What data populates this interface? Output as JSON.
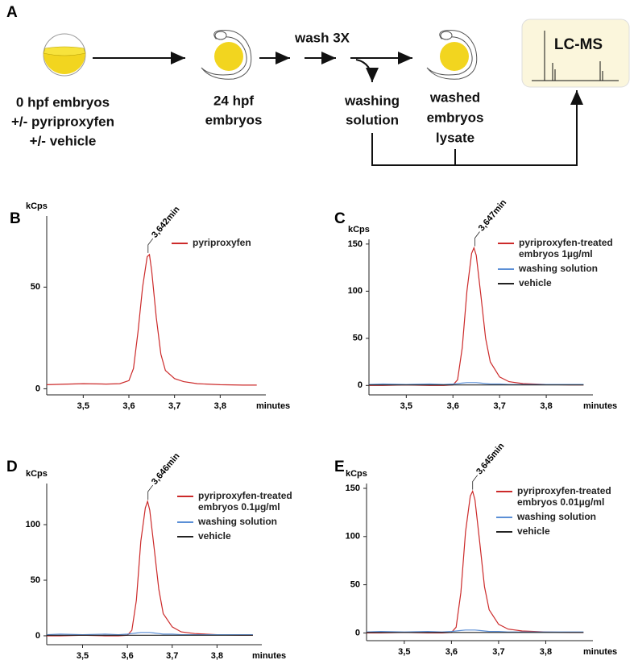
{
  "diagram": {
    "panel": "A",
    "start": [
      "0 hpf embryos",
      "+/- pyriproxyfen",
      "+/- vehicle"
    ],
    "mid": [
      "24 hpf",
      "embryos"
    ],
    "wash": "wash 3X",
    "solution": [
      "washing",
      "solution"
    ],
    "lysate": [
      "washed",
      "embryos",
      "lysate"
    ],
    "instrument": "LC-MS"
  },
  "chart_data": [
    {
      "type": "line",
      "panel": "B",
      "ylabel": "kCps",
      "xlabel": "minutes",
      "peak_label": "3,642min",
      "peak_x": 3.642,
      "x": [
        3.42,
        3.45,
        3.5,
        3.55,
        3.58,
        3.6,
        3.61,
        3.62,
        3.63,
        3.64,
        3.645,
        3.65,
        3.66,
        3.67,
        3.68,
        3.7,
        3.72,
        3.75,
        3.8,
        3.85,
        3.88
      ],
      "xlim": [
        3.42,
        3.9
      ],
      "xticks": [
        {
          "value": 3.5,
          "label": "3,5"
        },
        {
          "value": 3.6,
          "label": "3,6"
        },
        {
          "value": 3.7,
          "label": "3,7"
        },
        {
          "value": 3.8,
          "label": "3,8"
        }
      ],
      "ylim": [
        -3,
        85
      ],
      "yticks": [
        0,
        50
      ],
      "series": [
        {
          "name": "pyriproxyfen",
          "color": "#cc2a2a",
          "values": [
            2,
            2.2,
            2.5,
            2.3,
            2.5,
            4,
            10,
            28,
            50,
            65,
            66,
            58,
            35,
            17,
            9,
            5,
            3.5,
            2.5,
            2,
            1.8,
            1.8
          ]
        }
      ]
    },
    {
      "type": "line",
      "panel": "C",
      "ylabel": "kCps",
      "xlabel": "minutes",
      "peak_label": "3,647min",
      "peak_x": 3.647,
      "x": [
        3.42,
        3.45,
        3.5,
        3.55,
        3.58,
        3.6,
        3.61,
        3.62,
        3.63,
        3.64,
        3.645,
        3.65,
        3.66,
        3.67,
        3.68,
        3.7,
        3.72,
        3.75,
        3.8,
        3.85,
        3.88
      ],
      "xlim": [
        3.42,
        3.9
      ],
      "xticks": [
        {
          "value": 3.5,
          "label": "3,5"
        },
        {
          "value": 3.6,
          "label": "3,6"
        },
        {
          "value": 3.7,
          "label": "3,7"
        },
        {
          "value": 3.8,
          "label": "3,8"
        }
      ],
      "ylim": [
        -10,
        155
      ],
      "yticks": [
        0,
        50,
        100,
        150
      ],
      "series": [
        {
          "name": "pyriproxyfen-treated embryos 1µg/ml",
          "color": "#cc2a2a",
          "values": [
            0,
            0,
            0.5,
            0,
            0,
            0.5,
            6,
            40,
            100,
            140,
            146,
            138,
            95,
            50,
            25,
            9,
            4,
            2,
            1,
            0.5,
            0.5
          ]
        },
        {
          "name": "washing solution",
          "color": "#5b8fd6",
          "values": [
            1,
            1.5,
            1,
            1.5,
            1,
            1.5,
            2,
            2.5,
            3,
            3,
            3,
            3,
            2.5,
            2,
            1.5,
            1.5,
            1,
            1,
            1,
            1,
            1
          ]
        },
        {
          "name": "vehicle",
          "color": "#222222",
          "values": [
            0.5,
            0.5,
            0.5,
            0.5,
            0.5,
            0.5,
            0.5,
            0.5,
            0.5,
            0.5,
            0.5,
            0.5,
            0.5,
            0.5,
            0.5,
            0.5,
            0.5,
            0.5,
            0.5,
            0.5,
            0.5
          ]
        }
      ]
    },
    {
      "type": "line",
      "panel": "D",
      "ylabel": "kCps",
      "xlabel": "minutes",
      "peak_label": "3,646min",
      "peak_x": 3.646,
      "x": [
        3.42,
        3.45,
        3.5,
        3.55,
        3.58,
        3.6,
        3.61,
        3.62,
        3.63,
        3.64,
        3.645,
        3.65,
        3.66,
        3.67,
        3.68,
        3.7,
        3.72,
        3.75,
        3.8,
        3.85,
        3.88
      ],
      "xlim": [
        3.42,
        3.9
      ],
      "xticks": [
        {
          "value": 3.5,
          "label": "3,5"
        },
        {
          "value": 3.6,
          "label": "3,6"
        },
        {
          "value": 3.7,
          "label": "3,7"
        },
        {
          "value": 3.8,
          "label": "3,8"
        }
      ],
      "ylim": [
        -8,
        137
      ],
      "yticks": [
        0,
        50,
        100
      ],
      "series": [
        {
          "name": "pyriproxyfen-treated embryos 0.1µg/ml",
          "color": "#cc2a2a",
          "values": [
            0,
            0,
            0.5,
            0,
            0,
            0.5,
            5,
            32,
            85,
            115,
            121,
            113,
            78,
            42,
            20,
            8,
            3.5,
            2,
            1,
            0.5,
            0.5
          ]
        },
        {
          "name": "washing solution",
          "color": "#5b8fd6",
          "values": [
            1,
            1.5,
            1,
            1.5,
            1,
            1.5,
            2,
            2.5,
            3,
            3,
            3,
            3,
            2.5,
            2,
            1.5,
            1.5,
            1,
            1,
            1,
            1,
            1
          ]
        },
        {
          "name": "vehicle",
          "color": "#222222",
          "values": [
            0.5,
            0.5,
            0.5,
            0.5,
            0.5,
            0.5,
            0.5,
            0.5,
            0.5,
            0.5,
            0.5,
            0.5,
            0.5,
            0.5,
            0.5,
            0.5,
            0.5,
            0.5,
            0.5,
            0.5,
            0.5
          ]
        }
      ]
    },
    {
      "type": "line",
      "panel": "E",
      "ylabel": "kCps",
      "xlabel": "minutes",
      "peak_label": "3,645min",
      "peak_x": 3.645,
      "x": [
        3.42,
        3.45,
        3.5,
        3.55,
        3.58,
        3.6,
        3.61,
        3.62,
        3.63,
        3.64,
        3.645,
        3.65,
        3.66,
        3.67,
        3.68,
        3.7,
        3.72,
        3.75,
        3.8,
        3.85,
        3.88
      ],
      "xlim": [
        3.42,
        3.9
      ],
      "xticks": [
        {
          "value": 3.5,
          "label": "3,5"
        },
        {
          "value": 3.6,
          "label": "3,6"
        },
        {
          "value": 3.7,
          "label": "3,7"
        },
        {
          "value": 3.8,
          "label": "3,8"
        }
      ],
      "ylim": [
        -8,
        155
      ],
      "yticks": [
        0,
        50,
        100,
        150
      ],
      "series": [
        {
          "name": "pyriproxyfen-treated embryos 0.01µg/ml",
          "color": "#cc2a2a",
          "values": [
            0,
            0,
            0.5,
            0,
            0,
            0.5,
            6,
            42,
            105,
            142,
            147,
            138,
            94,
            48,
            24,
            9,
            4,
            2,
            1,
            0.5,
            0.5
          ]
        },
        {
          "name": "washing solution",
          "color": "#5b8fd6",
          "values": [
            1,
            1.5,
            1,
            1.5,
            1,
            1.5,
            2,
            2.5,
            3,
            3,
            3,
            3,
            2.5,
            2,
            1.5,
            1.5,
            1,
            1,
            1,
            1,
            1
          ]
        },
        {
          "name": "vehicle",
          "color": "#222222",
          "values": [
            0.5,
            0.5,
            0.5,
            0.5,
            0.5,
            0.5,
            0.5,
            0.5,
            0.5,
            0.5,
            0.5,
            0.5,
            0.5,
            0.5,
            0.5,
            0.5,
            0.5,
            0.5,
            0.5,
            0.5,
            0.5
          ]
        }
      ]
    }
  ]
}
